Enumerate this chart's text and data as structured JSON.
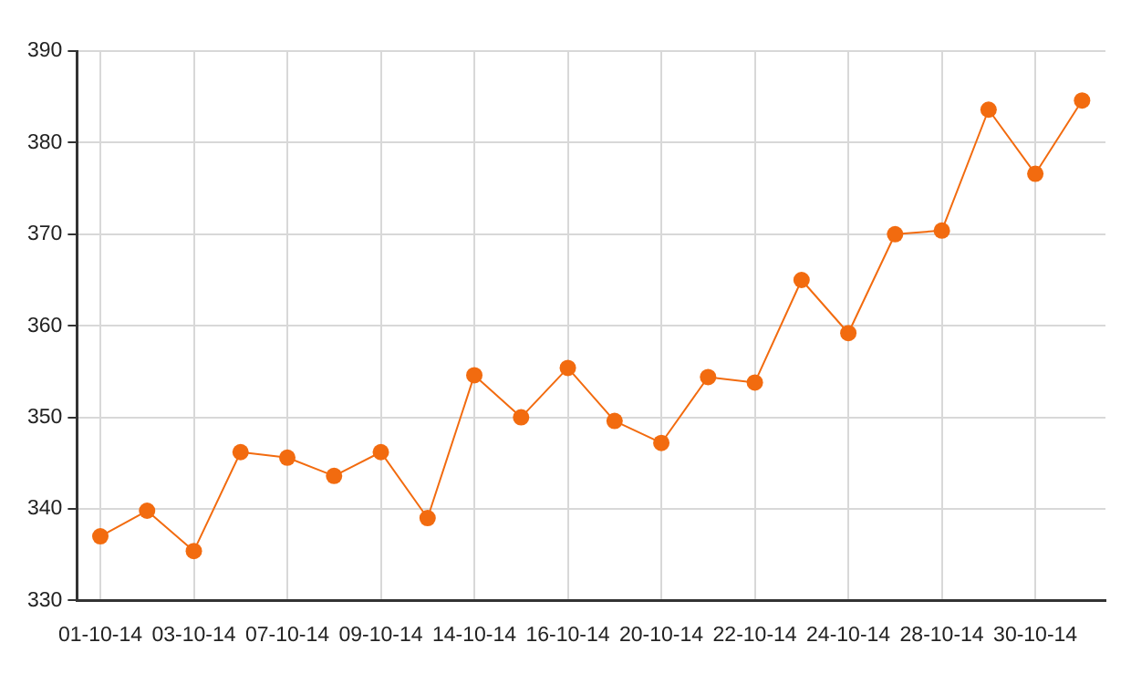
{
  "chart_data": {
    "type": "line",
    "categories": [
      "01-10-14",
      null,
      "03-10-14",
      null,
      "07-10-14",
      null,
      "09-10-14",
      null,
      "14-10-14",
      null,
      "16-10-14",
      null,
      "20-10-14",
      null,
      "22-10-14",
      null,
      "24-10-14",
      null,
      "28-10-14",
      null,
      "30-10-14",
      null
    ],
    "series": [
      {
        "color": "#f26b0f",
        "values": [
          337,
          339.8,
          335.4,
          346.2,
          345.6,
          343.6,
          346.2,
          339,
          354.6,
          350,
          355.4,
          349.6,
          347.2,
          354.4,
          353.8,
          365,
          359.2,
          370,
          370.4,
          383.6,
          376.6,
          384.6
        ]
      }
    ],
    "ylim": [
      330,
      390
    ],
    "yticks": [
      330,
      340,
      350,
      360,
      370,
      380,
      390
    ],
    "grid": true,
    "legend": false,
    "marker": "circle",
    "line_style": "solid"
  }
}
